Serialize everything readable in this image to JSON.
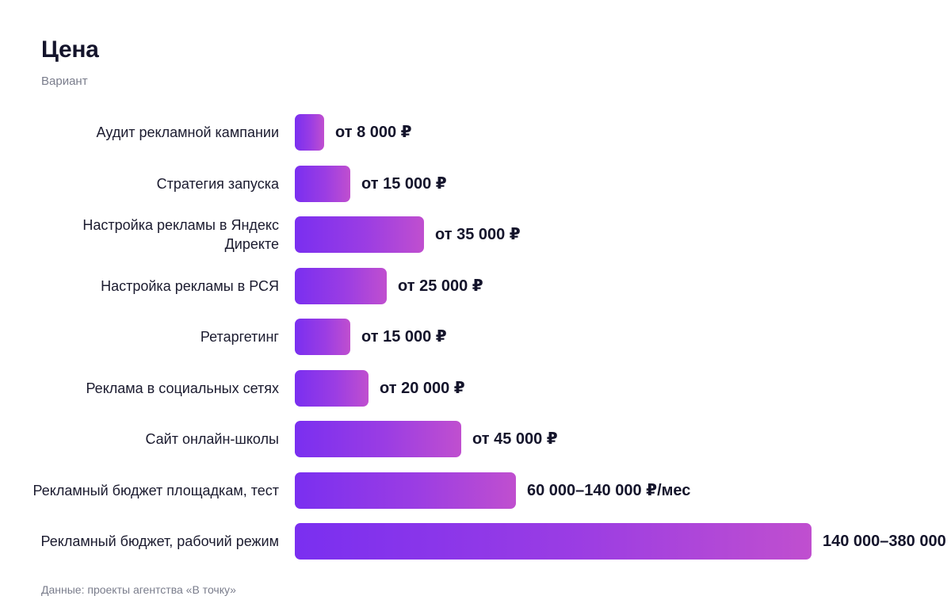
{
  "header": {
    "title": "Цена",
    "subtitle": "Вариант"
  },
  "footer": {
    "source": "Данные: проекты агентства «В точку»"
  },
  "colors": {
    "bar_start": "#7a2ff0",
    "bar_end": "#c04fcf",
    "text": "#1b1b2f",
    "muted": "#7a7d8c"
  },
  "chart_data": {
    "type": "bar",
    "orientation": "horizontal",
    "title": "Цена",
    "subtitle": "Вариант",
    "xlabel": "",
    "ylabel": "",
    "grid": false,
    "unit": "₽",
    "categories": [
      "Аудит рекламной кампании",
      "Стратегия запуска",
      "Настройка рекламы в Яндекс Директе",
      "Настройка рекламы в РСЯ",
      "Ретаргетинг",
      "Реклама в социальных сетях",
      "Сайт онлайн-школы",
      "Рекламный бюджет площадкам, тест",
      "Рекламный бюджет, рабочий режим"
    ],
    "values": [
      8000,
      15000,
      35000,
      25000,
      15000,
      20000,
      45000,
      60000,
      140000
    ],
    "value_ranges": [
      [
        8000,
        null
      ],
      [
        15000,
        null
      ],
      [
        35000,
        null
      ],
      [
        25000,
        null
      ],
      [
        15000,
        null
      ],
      [
        20000,
        null
      ],
      [
        45000,
        null
      ],
      [
        60000,
        140000
      ],
      [
        140000,
        380000
      ]
    ],
    "data_labels": [
      "от 8 000 ₽",
      "от 15 000 ₽",
      "от 35 000 ₽",
      "от 25 000 ₽",
      "от 15 000 ₽",
      "от 20 000 ₽",
      "от 45 000 ₽",
      "60 000–140 000 ₽/мес",
      "140 000–380 000"
    ]
  }
}
